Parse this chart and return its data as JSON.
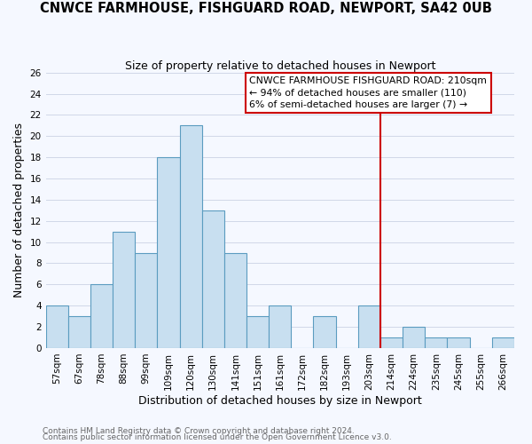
{
  "title": "CNWCE FARMHOUSE, FISHGUARD ROAD, NEWPORT, SA42 0UB",
  "subtitle": "Size of property relative to detached houses in Newport",
  "xlabel": "Distribution of detached houses by size in Newport",
  "ylabel": "Number of detached properties",
  "bin_labels": [
    "57sqm",
    "67sqm",
    "78sqm",
    "88sqm",
    "99sqm",
    "109sqm",
    "120sqm",
    "130sqm",
    "141sqm",
    "151sqm",
    "161sqm",
    "172sqm",
    "182sqm",
    "193sqm",
    "203sqm",
    "214sqm",
    "224sqm",
    "235sqm",
    "245sqm",
    "255sqm",
    "266sqm"
  ],
  "bar_heights": [
    4,
    3,
    6,
    11,
    9,
    18,
    21,
    13,
    9,
    3,
    4,
    0,
    3,
    0,
    4,
    1,
    2,
    1,
    1,
    0,
    1
  ],
  "bar_color": "#c8dff0",
  "bar_edge_color": "#5b9cc0",
  "vline_x_index": 15,
  "vline_color": "#cc0000",
  "ylim": [
    0,
    26
  ],
  "yticks": [
    0,
    2,
    4,
    6,
    8,
    10,
    12,
    14,
    16,
    18,
    20,
    22,
    24,
    26
  ],
  "annotation_title": "CNWCE FARMHOUSE FISHGUARD ROAD: 210sqm",
  "annotation_line1": "← 94% of detached houses are smaller (110)",
  "annotation_line2": "6% of semi-detached houses are larger (7) →",
  "footer1": "Contains HM Land Registry data © Crown copyright and database right 2024.",
  "footer2": "Contains public sector information licensed under the Open Government Licence v3.0.",
  "bg_color": "#f5f8ff",
  "grid_color": "#d0d8e8",
  "title_fontsize": 10.5,
  "subtitle_fontsize": 9,
  "axis_label_fontsize": 9,
  "tick_fontsize": 7.5,
  "ann_fontsize": 7.8,
  "footer_fontsize": 6.5
}
